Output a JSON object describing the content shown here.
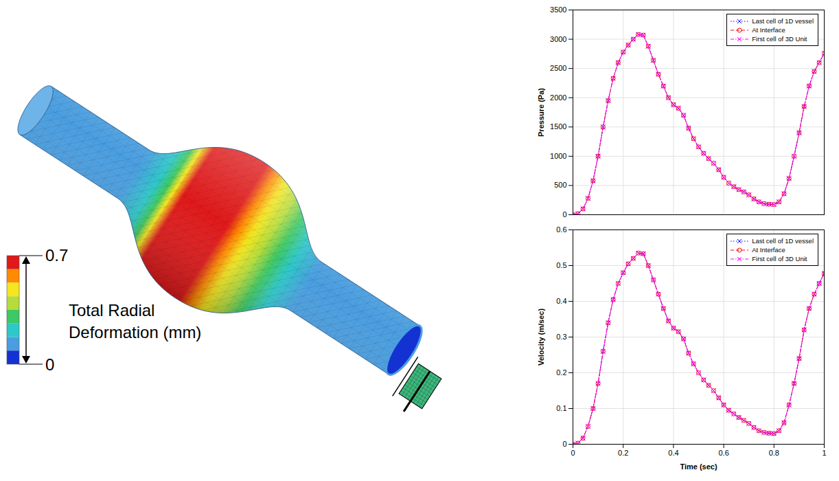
{
  "chart_data": [
    {
      "type": "line",
      "y_label": "Pressure (Pa)",
      "x": [
        0,
        0.02,
        0.04,
        0.06,
        0.08,
        0.1,
        0.12,
        0.14,
        0.16,
        0.18,
        0.2,
        0.22,
        0.24,
        0.26,
        0.28,
        0.3,
        0.32,
        0.34,
        0.36,
        0.38,
        0.4,
        0.42,
        0.44,
        0.46,
        0.48,
        0.5,
        0.52,
        0.54,
        0.56,
        0.58,
        0.6,
        0.62,
        0.64,
        0.66,
        0.68,
        0.7,
        0.72,
        0.74,
        0.76,
        0.78,
        0.8,
        0.82,
        0.84,
        0.86,
        0.88,
        0.9,
        0.92,
        0.94,
        0.96,
        0.98,
        1
      ],
      "xlim": [
        0,
        1
      ],
      "xticks": [
        0,
        0.2,
        0.4,
        0.6,
        0.8,
        1
      ],
      "ylim": [
        0,
        3500
      ],
      "yticks": [
        0,
        500,
        1000,
        1500,
        2000,
        2500,
        3000,
        3500
      ],
      "grid": true,
      "legend": "top-right",
      "tick_labels": "y",
      "series": [
        {
          "name": "Last cell of 1D vessel",
          "color": "#0000ff",
          "marker": "x",
          "line_style": "dotted",
          "values": [
            0,
            20,
            100,
            280,
            580,
            1000,
            1500,
            1950,
            2330,
            2600,
            2780,
            2900,
            3000,
            3080,
            3070,
            2880,
            2640,
            2400,
            2200,
            2000,
            1880,
            1820,
            1700,
            1480,
            1300,
            1160,
            1050,
            960,
            880,
            770,
            640,
            540,
            480,
            430,
            390,
            340,
            270,
            220,
            190,
            180,
            175,
            220,
            360,
            620,
            1000,
            1400,
            1850,
            2200,
            2450,
            2600,
            2760
          ]
        },
        {
          "name": "At Interface",
          "color": "#ff0000",
          "marker": "o",
          "line_style": "dashed",
          "values": [
            0,
            20,
            100,
            280,
            580,
            1000,
            1500,
            1950,
            2330,
            2600,
            2780,
            2900,
            3000,
            3080,
            3070,
            2880,
            2640,
            2400,
            2200,
            2000,
            1880,
            1820,
            1700,
            1480,
            1300,
            1160,
            1050,
            960,
            880,
            770,
            640,
            540,
            480,
            430,
            390,
            340,
            270,
            220,
            190,
            180,
            175,
            220,
            360,
            620,
            1000,
            1400,
            1850,
            2200,
            2450,
            2600,
            2760
          ]
        },
        {
          "name": "First cell of 3D Unit",
          "color": "#ff00ff",
          "marker": "x",
          "line_style": "dashdot",
          "values": [
            0,
            20,
            100,
            280,
            580,
            1000,
            1500,
            1950,
            2330,
            2600,
            2780,
            2900,
            3000,
            3080,
            3070,
            2880,
            2640,
            2400,
            2200,
            2000,
            1880,
            1820,
            1700,
            1480,
            1300,
            1160,
            1050,
            960,
            880,
            770,
            640,
            540,
            480,
            430,
            390,
            340,
            270,
            220,
            190,
            180,
            175,
            220,
            360,
            620,
            1000,
            1400,
            1850,
            2200,
            2450,
            2600,
            2760
          ]
        }
      ]
    },
    {
      "type": "line",
      "x_label": "Time (sec)",
      "y_label": "Velocity (m/sec)",
      "x": [
        0,
        0.02,
        0.04,
        0.06,
        0.08,
        0.1,
        0.12,
        0.14,
        0.16,
        0.18,
        0.2,
        0.22,
        0.24,
        0.26,
        0.28,
        0.3,
        0.32,
        0.34,
        0.36,
        0.38,
        0.4,
        0.42,
        0.44,
        0.46,
        0.48,
        0.5,
        0.52,
        0.54,
        0.56,
        0.58,
        0.6,
        0.62,
        0.64,
        0.66,
        0.68,
        0.7,
        0.72,
        0.74,
        0.76,
        0.78,
        0.8,
        0.82,
        0.84,
        0.86,
        0.88,
        0.9,
        0.92,
        0.94,
        0.96,
        0.98,
        1
      ],
      "xlim": [
        0,
        1
      ],
      "xticks": [
        0,
        0.2,
        0.4,
        0.6,
        0.8,
        1
      ],
      "ylim": [
        0,
        0.6
      ],
      "yticks": [
        0,
        0.1,
        0.2,
        0.3,
        0.4,
        0.5,
        0.6
      ],
      "grid": true,
      "legend": "top-right",
      "series": [
        {
          "name": "Last cell of 1D vessel",
          "color": "#0000ff",
          "marker": "x",
          "line_style": "dotted",
          "values": [
            0,
            0.003,
            0.017,
            0.05,
            0.1,
            0.17,
            0.26,
            0.34,
            0.405,
            0.45,
            0.48,
            0.505,
            0.52,
            0.535,
            0.533,
            0.5,
            0.46,
            0.42,
            0.38,
            0.345,
            0.325,
            0.315,
            0.295,
            0.255,
            0.225,
            0.2,
            0.18,
            0.165,
            0.15,
            0.13,
            0.11,
            0.095,
            0.085,
            0.075,
            0.067,
            0.058,
            0.047,
            0.038,
            0.033,
            0.031,
            0.03,
            0.038,
            0.06,
            0.11,
            0.17,
            0.24,
            0.32,
            0.38,
            0.42,
            0.45,
            0.478
          ]
        },
        {
          "name": "At Interface",
          "color": "#ff0000",
          "marker": "o",
          "line_style": "dashed",
          "values": [
            0,
            0.003,
            0.017,
            0.05,
            0.1,
            0.17,
            0.26,
            0.34,
            0.405,
            0.45,
            0.48,
            0.505,
            0.52,
            0.535,
            0.533,
            0.5,
            0.46,
            0.42,
            0.38,
            0.345,
            0.325,
            0.315,
            0.295,
            0.255,
            0.225,
            0.2,
            0.18,
            0.165,
            0.15,
            0.13,
            0.11,
            0.095,
            0.085,
            0.075,
            0.067,
            0.058,
            0.047,
            0.038,
            0.033,
            0.031,
            0.03,
            0.038,
            0.06,
            0.11,
            0.17,
            0.24,
            0.32,
            0.38,
            0.42,
            0.45,
            0.478
          ]
        },
        {
          "name": "First cell of 3D Unit",
          "color": "#ff00ff",
          "marker": "x",
          "line_style": "dashdot",
          "values": [
            0,
            0.003,
            0.017,
            0.05,
            0.1,
            0.17,
            0.26,
            0.34,
            0.405,
            0.45,
            0.48,
            0.505,
            0.52,
            0.535,
            0.533,
            0.5,
            0.46,
            0.42,
            0.38,
            0.345,
            0.325,
            0.315,
            0.295,
            0.255,
            0.225,
            0.2,
            0.18,
            0.165,
            0.15,
            0.13,
            0.11,
            0.095,
            0.085,
            0.075,
            0.067,
            0.058,
            0.047,
            0.038,
            0.033,
            0.031,
            0.03,
            0.038,
            0.06,
            0.11,
            0.17,
            0.24,
            0.32,
            0.38,
            0.42,
            0.45,
            0.478
          ]
        }
      ]
    }
  ],
  "diagram": {
    "colorbar": {
      "label": "Total Radial Deformation (mm)",
      "range": [
        0,
        0.7
      ],
      "colors": [
        "#e0191a",
        "#ff8c00",
        "#f5e61e",
        "#b4dc3c",
        "#3cc864",
        "#2dc8c8",
        "#4a9ee0",
        "#1432d2"
      ]
    }
  }
}
